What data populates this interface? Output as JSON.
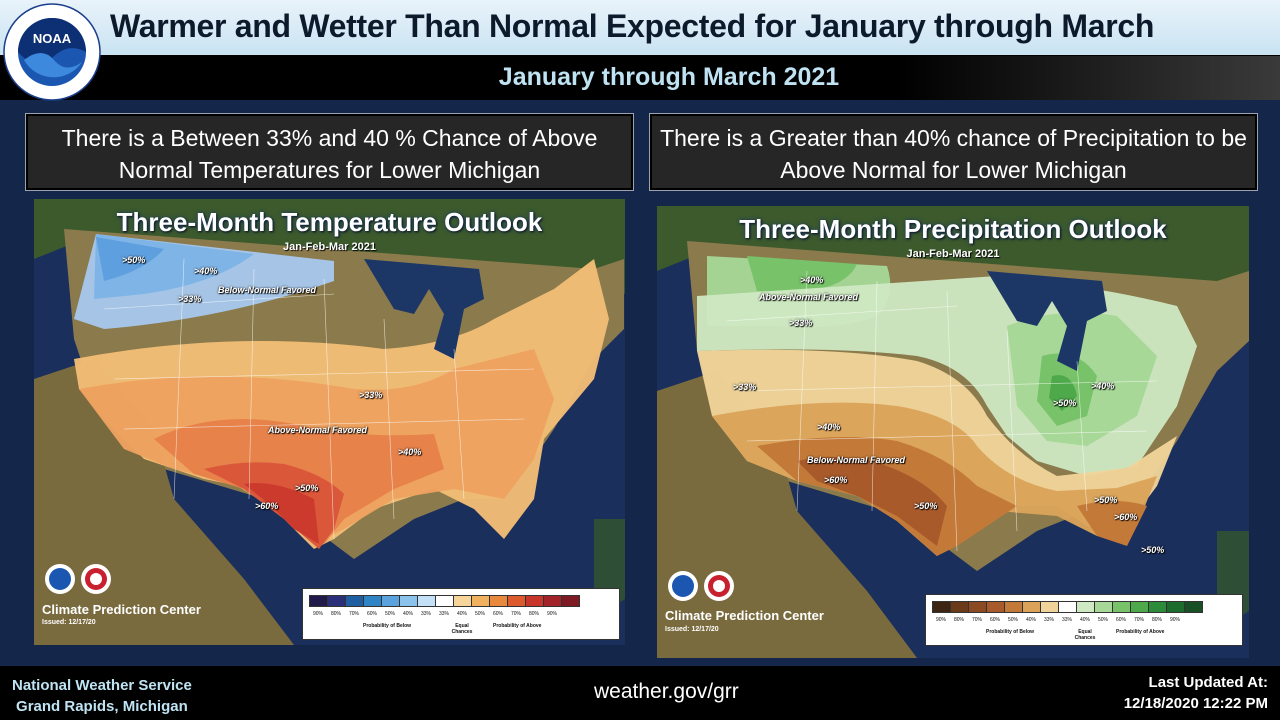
{
  "header": {
    "title": "Warmer and Wetter Than Normal Expected for January through March",
    "subtitle": "January through March 2021",
    "logo_text": "NOAA",
    "logo_ring_text": "NATIONAL OCEANIC AND ATMOSPHERIC ADMINISTRATION · U.S. DEPARTMENT OF COMMERCE"
  },
  "callouts": {
    "temperature": "There is a Between 33% and 40 % Chance of Above Normal Temperatures for Lower Michigan",
    "precipitation": "There is a Greater than 40% chance of  Precipitation to be Above Normal  for Lower Michigan"
  },
  "temperature_map": {
    "title": "Three-Month Temperature Outlook",
    "period": "Jan-Feb-Mar 2021",
    "labels": {
      "cold50": ">50%",
      "cold40": ">40%",
      "cold33": ">33%",
      "below": "Below-Normal Favored",
      "warm33": ">33%",
      "above": "Above-Normal Favored",
      "warm40": ">40%",
      "warm50": ">50%",
      "warm60": ">60%"
    },
    "center": "Climate Prediction Center",
    "issued": "Issued: 12/17/20",
    "legend": {
      "ticks": [
        "90%",
        "80%",
        "70%",
        "60%",
        "50%",
        "40%",
        "33%",
        "33%",
        "40%",
        "50%",
        "60%",
        "70%",
        "80%",
        "90%"
      ],
      "below": "Probability of Below",
      "equal": "Equal Chances",
      "above": "Probability of Above",
      "colors": [
        "#1f1a4a",
        "#2a2f7a",
        "#1f5ea0",
        "#2f84c6",
        "#5aa3de",
        "#8cc3ec",
        "#c4e0f6",
        "#ffffff",
        "#f7d59a",
        "#f0b25e",
        "#e8893e",
        "#dc5a2c",
        "#c8352a",
        "#a3232a",
        "#7d1a24"
      ]
    }
  },
  "precip_map": {
    "title": "Three-Month Precipitation Outlook",
    "period": "Jan-Feb-Mar 2021",
    "labels": {
      "wet40": ">40%",
      "wet33": ">33%",
      "above": "Above-Normal Favored",
      "dry33": ">33%",
      "dry40": ">40%",
      "below": "Below-Normal Favored",
      "dry60": ">60%",
      "dry50": ">50%",
      "wet40e": ">40%",
      "wet50": ">50%",
      "dry50se": ">50%",
      "dry60se": ">60%",
      "dry50fl": ">50%"
    },
    "center": "Climate Prediction Center",
    "issued": "Issued: 12/17/20",
    "legend": {
      "ticks": [
        "90%",
        "80%",
        "70%",
        "60%",
        "50%",
        "40%",
        "33%",
        "33%",
        "40%",
        "50%",
        "60%",
        "70%",
        "80%",
        "90%"
      ],
      "below": "Probability of Below",
      "equal": "Equal Chances",
      "above": "Probability of Above",
      "colors": [
        "#3d2513",
        "#6b3a19",
        "#8c4a22",
        "#a85a2b",
        "#c37a39",
        "#dba35a",
        "#f0d399",
        "#ffffff",
        "#cfe9c3",
        "#a7d898",
        "#78c26a",
        "#4da94a",
        "#2c8c3a",
        "#1e6b2e",
        "#184f25"
      ]
    }
  },
  "footer": {
    "org_line1": "National Weather Service",
    "org_line2": "Grand Rapids, Michigan",
    "website": "weather.gov/grr",
    "updated_label": "Last Updated At:",
    "updated_value": "12/18/2020 12:22 PM"
  }
}
